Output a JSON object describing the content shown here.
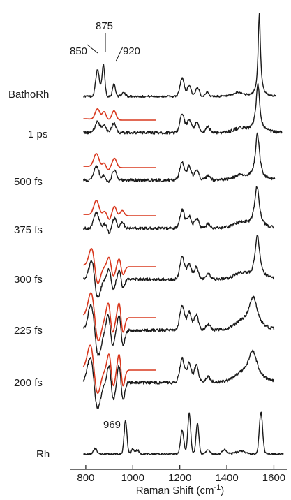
{
  "chart_data": {
    "type": "line",
    "xlabel_main": "Raman Shift (cm",
    "xlabel_sup": "-1",
    "xlabel_end": ")",
    "xlim": [
      735,
      1655
    ],
    "x_ticks": [
      800,
      1000,
      1200,
      1400,
      1600
    ],
    "x_tick_labels": [
      "800",
      "1000",
      "1200",
      "1400",
      "1600"
    ],
    "peak_labels": [
      {
        "text": "850",
        "x": 850
      },
      {
        "text": "875",
        "x": 875
      },
      {
        "text": "920",
        "x": 920
      },
      {
        "text": "969",
        "x": 969
      }
    ],
    "series": [
      {
        "name": "BathoRh",
        "has_fit": false
      },
      {
        "name": "1 ps",
        "has_fit": true
      },
      {
        "name": "500 fs",
        "has_fit": true
      },
      {
        "name": "375 fs",
        "has_fit": true
      },
      {
        "name": "300 fs",
        "has_fit": true
      },
      {
        "name": "225 fs",
        "has_fit": true
      },
      {
        "name": "200 fs",
        "has_fit": true
      },
      {
        "name": "Rh",
        "has_fit": false
      }
    ]
  }
}
